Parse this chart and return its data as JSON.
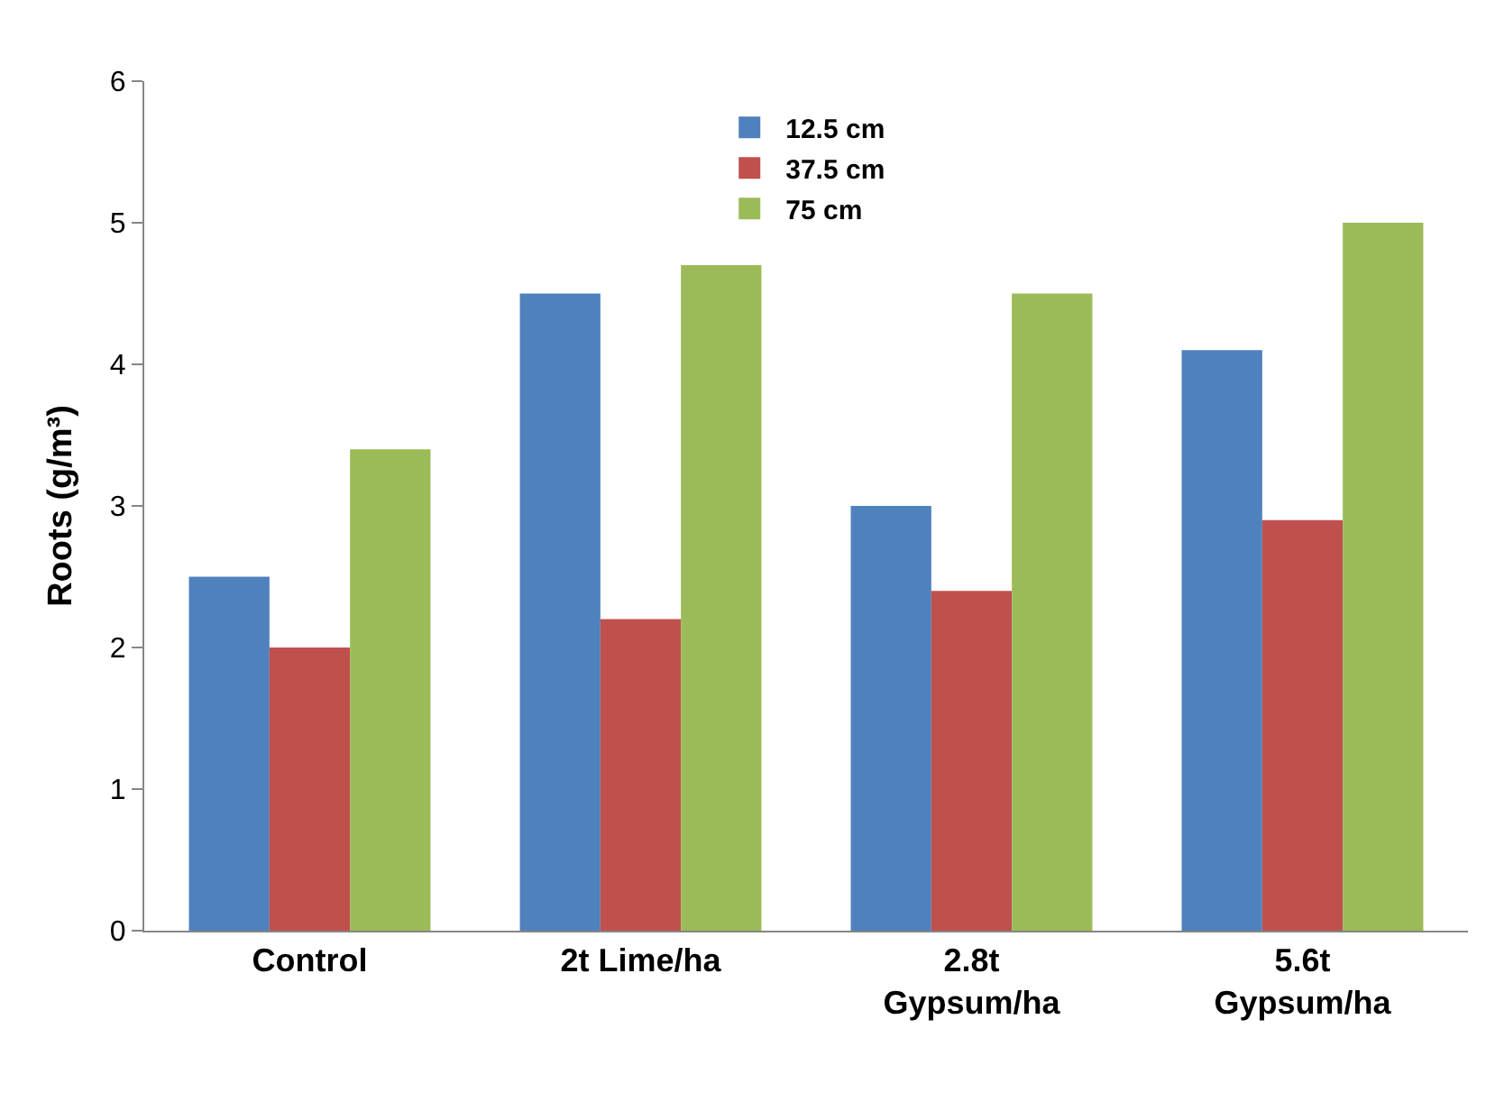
{
  "chart_data": {
    "type": "bar",
    "ylabel": "Roots (g/m³)",
    "categories": [
      "Control",
      "2t Lime/ha",
      "2.8t\nGypsum/ha",
      "5.6t\nGypsum/ha"
    ],
    "series": [
      {
        "name": "12.5 cm",
        "color": "#4f81bd",
        "values": [
          2.5,
          4.5,
          3.0,
          4.1
        ]
      },
      {
        "name": "37.5 cm",
        "color": "#c0504d",
        "values": [
          2.0,
          2.2,
          2.4,
          2.9
        ]
      },
      {
        "name": "75 cm",
        "color": "#9bbb59",
        "values": [
          3.4,
          4.7,
          4.5,
          5.0
        ]
      }
    ],
    "ylim": [
      0,
      6
    ],
    "yticks": [
      0,
      1,
      2,
      3,
      4,
      5,
      6
    ],
    "legend": "top"
  }
}
